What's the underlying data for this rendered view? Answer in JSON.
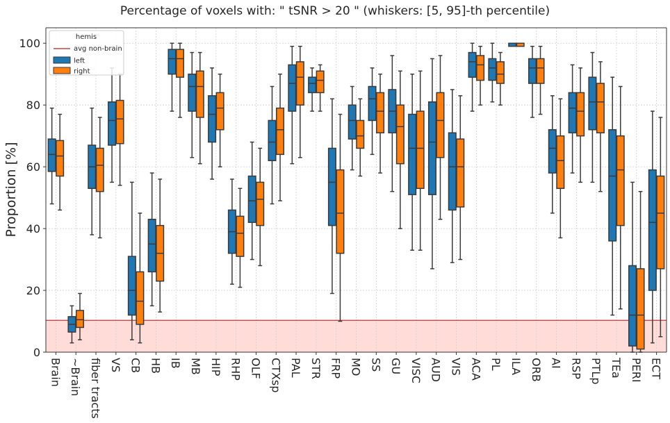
{
  "chart_data": {
    "type": "box",
    "title": "Percentage of voxels with:  \" tSNR  >  20 \"  (whiskers: [5, 95]-th percentile)",
    "xlabel": "",
    "ylabel": "Proportion [%]",
    "ylim": [
      0,
      105
    ],
    "yticks": [
      0,
      20,
      40,
      60,
      80,
      100
    ],
    "grid": true,
    "legend": {
      "title": "hemis",
      "placement": "top-left",
      "line_label": "avg non-brain",
      "entries": [
        "left",
        "right"
      ]
    },
    "reference_line": {
      "label": "avg non-brain",
      "value": 10.3,
      "color": "#b22222",
      "fill": "#ffdcd8"
    },
    "colors": {
      "left": "#1f77b4",
      "right": "#ff7f0e",
      "median": "#3a3a3a",
      "grid": "#d0d0d0"
    },
    "categories": [
      "Brain",
      "~Brain",
      "fiber tracts",
      "VS",
      "CB",
      "HB",
      "IB",
      "MB",
      "HIP",
      "RHP",
      "OLF",
      "CTXsp",
      "PAL",
      "STR",
      "FRP",
      "MO",
      "SS",
      "GU",
      "VISC",
      "AUD",
      "VIS",
      "ACA",
      "PL",
      "ILA",
      "ORB",
      "AI",
      "RSP",
      "PTLp",
      "TEa",
      "PERI",
      "ECT"
    ],
    "series": [
      {
        "name": "left",
        "boxes": [
          {
            "q1": 58.5,
            "median": 64,
            "q3": 69,
            "wlow": 48,
            "whigh": 79
          },
          {
            "q1": 6.5,
            "median": 9,
            "q3": 11.5,
            "wlow": 3,
            "whigh": 15
          },
          {
            "q1": 53,
            "median": 60,
            "q3": 67,
            "wlow": 38,
            "whigh": 79
          },
          {
            "q1": 67,
            "median": 75,
            "q3": 81,
            "wlow": 55,
            "whigh": 92
          },
          {
            "q1": 12,
            "median": 20,
            "q3": 31,
            "wlow": 4,
            "whigh": 55
          },
          {
            "q1": 26,
            "median": 35,
            "q3": 43,
            "wlow": 15,
            "whigh": 58
          },
          {
            "q1": 90,
            "median": 95,
            "q3": 98,
            "wlow": 78,
            "whigh": 100
          },
          {
            "q1": 78,
            "median": 86,
            "q3": 90,
            "wlow": 63,
            "whigh": 97
          },
          {
            "q1": 68,
            "median": 77,
            "q3": 83,
            "wlow": 56,
            "whigh": 92
          },
          {
            "q1": 32,
            "median": 39,
            "q3": 46,
            "wlow": 22,
            "whigh": 56
          },
          {
            "q1": 42,
            "median": 49,
            "q3": 57,
            "wlow": 30,
            "whigh": 68
          },
          {
            "q1": 62,
            "median": 68,
            "q3": 75,
            "wlow": 48,
            "whigh": 86
          },
          {
            "q1": 78,
            "median": 87,
            "q3": 93,
            "wlow": 61,
            "whigh": 99
          },
          {
            "q1": 84,
            "median": 87,
            "q3": 89,
            "wlow": 78,
            "whigh": 92
          },
          {
            "q1": 41,
            "median": 55,
            "q3": 66,
            "wlow": 19,
            "whigh": 82
          },
          {
            "q1": 69,
            "median": 75,
            "q3": 80,
            "wlow": 59,
            "whigh": 86
          },
          {
            "q1": 75,
            "median": 82,
            "q3": 86,
            "wlow": 64,
            "whigh": 92
          },
          {
            "q1": 71,
            "median": 78,
            "q3": 85,
            "wlow": 52,
            "whigh": 96
          },
          {
            "q1": 51,
            "median": 66,
            "q3": 77,
            "wlow": 33,
            "whigh": 90
          },
          {
            "q1": 51,
            "median": 68,
            "q3": 81,
            "wlow": 27,
            "whigh": 95
          },
          {
            "q1": 46,
            "median": 60,
            "q3": 71,
            "wlow": 29,
            "whigh": 85
          },
          {
            "q1": 89,
            "median": 94,
            "q3": 97,
            "wlow": 78,
            "whigh": 100
          },
          {
            "q1": 88,
            "median": 92,
            "q3": 95,
            "wlow": 81,
            "whigh": 100
          },
          {
            "q1": 99,
            "median": 100,
            "q3": 100,
            "wlow": 100,
            "whigh": 100
          },
          {
            "q1": 87,
            "median": 92,
            "q3": 95,
            "wlow": 76,
            "whigh": 99
          },
          {
            "q1": 58,
            "median": 66,
            "q3": 72,
            "wlow": 45,
            "whigh": 83
          },
          {
            "q1": 71,
            "median": 79,
            "q3": 84,
            "wlow": 58,
            "whigh": 93
          },
          {
            "q1": 72,
            "median": 81,
            "q3": 89,
            "wlow": 55,
            "whigh": 97
          },
          {
            "q1": 36,
            "median": 57,
            "q3": 72,
            "wlow": 12,
            "whigh": 89
          },
          {
            "q1": 2,
            "median": 12,
            "q3": 28,
            "wlow": 0,
            "whigh": 55
          },
          {
            "q1": 20,
            "median": 42,
            "q3": 59,
            "wlow": 3,
            "whigh": 78
          }
        ]
      },
      {
        "name": "right",
        "boxes": [
          {
            "q1": 57,
            "median": 63.5,
            "q3": 68.5,
            "wlow": 46,
            "whigh": 77
          },
          {
            "q1": 8,
            "median": 10.5,
            "q3": 13.5,
            "wlow": 4,
            "whigh": 19
          },
          {
            "q1": 52,
            "median": 60.5,
            "q3": 66,
            "wlow": 37,
            "whigh": 76
          },
          {
            "q1": 67.5,
            "median": 75.5,
            "q3": 81.5,
            "wlow": 54,
            "whigh": 90
          },
          {
            "q1": 9,
            "median": 16.5,
            "q3": 26,
            "wlow": 3,
            "whigh": 45
          },
          {
            "q1": 23,
            "median": 32,
            "q3": 41,
            "wlow": 13,
            "whigh": 56
          },
          {
            "q1": 89,
            "median": 95,
            "q3": 98,
            "wlow": 76,
            "whigh": 100
          },
          {
            "q1": 76,
            "median": 86,
            "q3": 91,
            "wlow": 61,
            "whigh": 97
          },
          {
            "q1": 72,
            "median": 79,
            "q3": 84,
            "wlow": 60,
            "whigh": 90
          },
          {
            "q1": 31,
            "median": 38.5,
            "q3": 44,
            "wlow": 21,
            "whigh": 53
          },
          {
            "q1": 41,
            "median": 49.5,
            "q3": 55,
            "wlow": 28,
            "whigh": 66
          },
          {
            "q1": 64,
            "median": 72,
            "q3": 79,
            "wlow": 49,
            "whigh": 90
          },
          {
            "q1": 80,
            "median": 89,
            "q3": 94,
            "wlow": 63,
            "whigh": 99
          },
          {
            "q1": 84,
            "median": 88,
            "q3": 91,
            "wlow": 78,
            "whigh": 93
          },
          {
            "q1": 32,
            "median": 45,
            "q3": 59,
            "wlow": 10,
            "whigh": 77
          },
          {
            "q1": 66,
            "median": 70,
            "q3": 75,
            "wlow": 57,
            "whigh": 82
          },
          {
            "q1": 71,
            "median": 78,
            "q3": 84,
            "wlow": 58,
            "whigh": 90
          },
          {
            "q1": 61,
            "median": 73,
            "q3": 80,
            "wlow": 40,
            "whigh": 91
          },
          {
            "q1": 53,
            "median": 66,
            "q3": 78,
            "wlow": 33,
            "whigh": 91
          },
          {
            "q1": 63,
            "median": 75,
            "q3": 84,
            "wlow": 43,
            "whigh": 96
          },
          {
            "q1": 47,
            "median": 60,
            "q3": 69,
            "wlow": 30,
            "whigh": 83
          },
          {
            "q1": 88,
            "median": 93,
            "q3": 96,
            "wlow": 80,
            "whigh": 99
          },
          {
            "q1": 87,
            "median": 90,
            "q3": 94,
            "wlow": 80,
            "whigh": 97
          },
          {
            "q1": 99,
            "median": 100,
            "q3": 100,
            "wlow": 100,
            "whigh": 100
          },
          {
            "q1": 87,
            "median": 92,
            "q3": 95,
            "wlow": 77,
            "whigh": 99
          },
          {
            "q1": 53,
            "median": 62,
            "q3": 70,
            "wlow": 37,
            "whigh": 82
          },
          {
            "q1": 70,
            "median": 78,
            "q3": 84,
            "wlow": 55,
            "whigh": 92
          },
          {
            "q1": 71,
            "median": 81,
            "q3": 87,
            "wlow": 52,
            "whigh": 94
          },
          {
            "q1": 41,
            "median": 59,
            "q3": 70,
            "wlow": 14,
            "whigh": 86
          },
          {
            "q1": 1,
            "median": 12,
            "q3": 27,
            "wlow": 0,
            "whigh": 52
          },
          {
            "q1": 27,
            "median": 45,
            "q3": 57,
            "wlow": 5,
            "whigh": 76
          }
        ]
      }
    ]
  }
}
